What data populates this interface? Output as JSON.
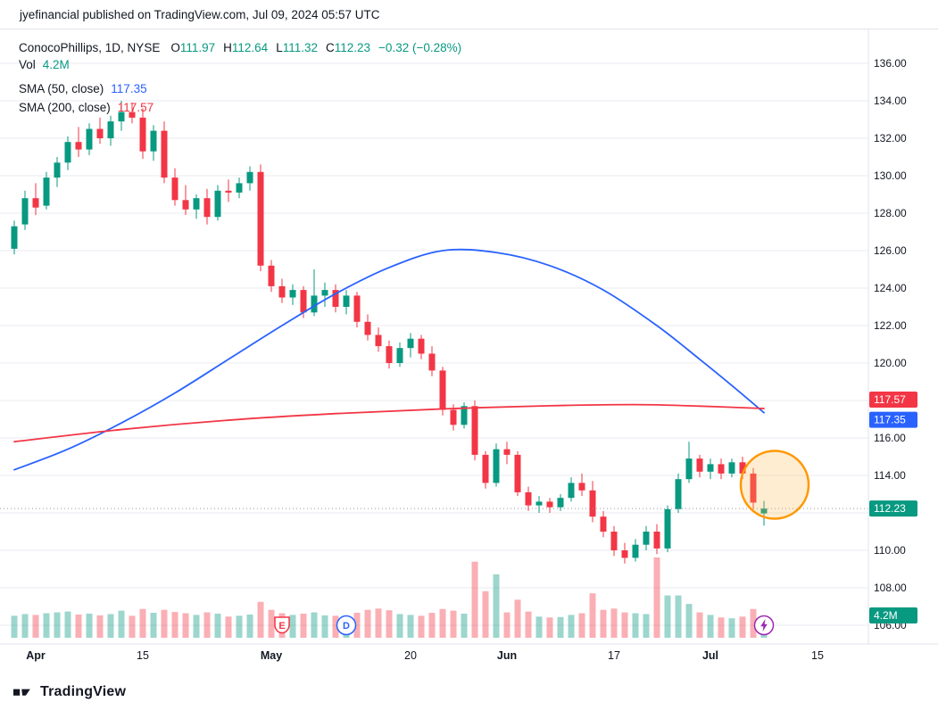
{
  "header": {
    "published_line": "jyefinancial published on TradingView.com, Jul 09, 2024 05:57 UTC"
  },
  "legend": {
    "title": "ConocoPhillips, 1D, NYSE",
    "ohlc": {
      "o_label": "O",
      "o": "111.97",
      "h_label": "H",
      "h": "112.64",
      "l_label": "L",
      "l": "111.32",
      "c_label": "C",
      "c": "112.23",
      "change": "−0.32 (−0.28%)"
    },
    "volume": {
      "label": "Vol",
      "value": "4.2M"
    },
    "sma50": {
      "label": "SMA (50, close)",
      "value": "117.35"
    },
    "sma200": {
      "label": "SMA (200, close)",
      "value": "117.57"
    }
  },
  "price_scale": {
    "badges": [
      {
        "text": "117.57",
        "bg": "#f23645"
      },
      {
        "text": "117.35",
        "bg": "#2962ff"
      },
      {
        "text": "112.23",
        "bg": "#089981"
      },
      {
        "text": "4.2M",
        "bg": "#089981",
        "anchor": "volume"
      }
    ]
  },
  "events": {
    "earnings": {
      "label": "E",
      "index": 25,
      "color": "#f23645"
    },
    "dividend": {
      "label": "D",
      "index": 31,
      "color": "#2962ff"
    },
    "latest": {
      "index": 70,
      "color": "#9c27b0",
      "icon": "lightning"
    }
  },
  "annotations": {
    "highlight_circle": {
      "index": 71,
      "price": 113.5,
      "radius": 38,
      "stroke": "#ff9800",
      "fill": "#ffb74d"
    }
  },
  "footer": {
    "brand": "TradingView"
  },
  "chart_data": {
    "type": "candlestick",
    "title": "ConocoPhillips, 1D, NYSE",
    "symbol": "ConocoPhillips",
    "interval": "1D",
    "exchange": "NYSE",
    "ylim": [
      106,
      136
    ],
    "grid_step": 2,
    "y_ticks": [
      "136.00",
      "134.00",
      "132.00",
      "130.00",
      "128.00",
      "126.00",
      "124.00",
      "122.00",
      "120.00",
      "118.00",
      "116.00",
      "114.00",
      "112.00",
      "110.00",
      "108.00",
      "106.00"
    ],
    "x_ticks": [
      {
        "label": "Apr",
        "index": 2
      },
      {
        "label": "15",
        "index": 12
      },
      {
        "label": "May",
        "index": 24
      },
      {
        "label": "20",
        "index": 37
      },
      {
        "label": "Jun",
        "index": 46
      },
      {
        "label": "17",
        "index": 56
      },
      {
        "label": "Jul",
        "index": 65
      },
      {
        "label": "15",
        "index": 75
      }
    ],
    "last_price": 112.23,
    "last_volume": "4.2M",
    "colors": {
      "up": "#089981",
      "down": "#f23645",
      "sma50": "#2962ff",
      "sma200": "#f23645",
      "grid": "#e8ebf0",
      "last_price_line": "#9598a1"
    },
    "candles": [
      [
        126.1,
        127.6,
        125.8,
        127.3,
        5.2
      ],
      [
        127.4,
        129.2,
        127.1,
        128.8,
        5.6
      ],
      [
        128.8,
        129.6,
        127.9,
        128.3,
        5.4
      ],
      [
        128.4,
        130.2,
        128.2,
        129.9,
        5.8
      ],
      [
        129.9,
        131.0,
        129.4,
        130.7,
        6.0
      ],
      [
        130.7,
        132.1,
        130.3,
        131.8,
        6.2
      ],
      [
        131.8,
        132.6,
        131.0,
        131.4,
        5.5
      ],
      [
        131.4,
        132.8,
        131.1,
        132.5,
        5.7
      ],
      [
        132.5,
        133.1,
        131.7,
        132.0,
        5.3
      ],
      [
        132.0,
        133.2,
        131.6,
        132.9,
        5.6
      ],
      [
        132.9,
        134.0,
        132.4,
        133.4,
        6.4
      ],
      [
        133.4,
        133.9,
        132.8,
        133.1,
        5.2
      ],
      [
        133.1,
        133.6,
        130.9,
        131.3,
        6.8
      ],
      [
        131.3,
        132.7,
        130.8,
        132.4,
        5.9
      ],
      [
        132.4,
        132.9,
        129.6,
        129.9,
        6.6
      ],
      [
        129.9,
        130.4,
        128.4,
        128.7,
        6.1
      ],
      [
        128.7,
        129.5,
        127.9,
        128.2,
        5.8
      ],
      [
        128.2,
        129.0,
        127.7,
        128.8,
        5.4
      ],
      [
        128.8,
        129.3,
        127.4,
        127.8,
        6.0
      ],
      [
        127.8,
        129.5,
        127.6,
        129.2,
        5.7
      ],
      [
        129.2,
        129.8,
        128.6,
        129.1,
        5.0
      ],
      [
        129.1,
        129.9,
        128.8,
        129.6,
        5.2
      ],
      [
        129.6,
        130.5,
        129.2,
        130.2,
        5.5
      ],
      [
        130.2,
        130.6,
        124.9,
        125.2,
        8.5
      ],
      [
        125.2,
        125.5,
        123.8,
        124.1,
        6.6
      ],
      [
        124.1,
        124.5,
        123.2,
        123.5,
        5.8
      ],
      [
        123.5,
        124.2,
        123.1,
        123.9,
        5.4
      ],
      [
        123.9,
        124.1,
        122.4,
        122.7,
        5.7
      ],
      [
        122.7,
        125.0,
        122.5,
        123.6,
        6.0
      ],
      [
        123.6,
        124.3,
        123.0,
        123.9,
        5.3
      ],
      [
        123.9,
        124.2,
        122.7,
        123.0,
        5.2
      ],
      [
        123.0,
        123.9,
        122.6,
        123.6,
        5.1
      ],
      [
        123.6,
        123.8,
        121.9,
        122.2,
        5.9
      ],
      [
        122.2,
        122.6,
        121.2,
        121.5,
        6.6
      ],
      [
        121.5,
        121.9,
        120.6,
        120.9,
        6.9
      ],
      [
        120.9,
        121.2,
        119.7,
        120.0,
        6.5
      ],
      [
        120.0,
        121.1,
        119.8,
        120.8,
        5.6
      ],
      [
        120.8,
        121.6,
        120.3,
        121.3,
        5.4
      ],
      [
        121.3,
        121.5,
        120.2,
        120.5,
        5.2
      ],
      [
        120.5,
        120.9,
        119.3,
        119.6,
        5.9
      ],
      [
        119.6,
        119.8,
        117.2,
        117.5,
        6.8
      ],
      [
        117.5,
        117.8,
        116.4,
        116.7,
        6.4
      ],
      [
        116.7,
        117.9,
        116.5,
        117.7,
        5.7
      ],
      [
        117.7,
        118.0,
        114.8,
        115.1,
        18.0
      ],
      [
        115.1,
        115.3,
        113.3,
        113.6,
        11.0
      ],
      [
        113.6,
        115.7,
        113.4,
        115.4,
        15.0
      ],
      [
        115.4,
        115.8,
        114.6,
        115.1,
        6.0
      ],
      [
        115.1,
        115.3,
        112.9,
        113.1,
        9.0
      ],
      [
        113.1,
        113.4,
        112.1,
        112.4,
        6.2
      ],
      [
        112.4,
        112.9,
        112.0,
        112.6,
        5.0
      ],
      [
        112.6,
        112.8,
        112.0,
        112.3,
        4.8
      ],
      [
        112.3,
        113.0,
        112.1,
        112.8,
        4.9
      ],
      [
        112.8,
        113.9,
        112.6,
        113.6,
        5.4
      ],
      [
        113.6,
        114.1,
        112.9,
        113.2,
        5.8
      ],
      [
        113.2,
        113.7,
        111.5,
        111.8,
        10.5
      ],
      [
        111.8,
        112.1,
        110.7,
        111.0,
        6.6
      ],
      [
        111.0,
        111.3,
        109.7,
        110.0,
        6.9
      ],
      [
        110.0,
        110.4,
        109.3,
        109.6,
        6.0
      ],
      [
        109.6,
        110.6,
        109.4,
        110.3,
        5.8
      ],
      [
        110.3,
        111.3,
        110.0,
        111.0,
        5.6
      ],
      [
        111.0,
        111.4,
        109.8,
        110.1,
        19.0
      ],
      [
        110.1,
        112.4,
        109.9,
        112.2,
        10.0
      ],
      [
        112.2,
        114.1,
        112.0,
        113.8,
        10.0
      ],
      [
        113.8,
        115.8,
        113.6,
        114.9,
        8.0
      ],
      [
        114.9,
        115.1,
        113.9,
        114.2,
        6.0
      ],
      [
        114.2,
        114.9,
        113.8,
        114.6,
        5.4
      ],
      [
        114.6,
        114.9,
        113.8,
        114.1,
        4.8
      ],
      [
        114.1,
        114.9,
        113.9,
        114.7,
        4.6
      ],
      [
        114.7,
        115.0,
        113.8,
        114.1,
        5.0
      ],
      [
        114.1,
        114.4,
        112.2,
        112.55,
        6.8
      ],
      [
        111.97,
        112.64,
        111.32,
        112.23,
        4.2
      ]
    ],
    "overlays": [
      {
        "name": "SMA 50",
        "color": "#2962ff",
        "points": [
          [
            0,
            114.3
          ],
          [
            5,
            115.4
          ],
          [
            10,
            116.8
          ],
          [
            15,
            118.4
          ],
          [
            20,
            120.2
          ],
          [
            25,
            122.0
          ],
          [
            30,
            123.7
          ],
          [
            35,
            125.1
          ],
          [
            40,
            126.0
          ],
          [
            45,
            125.9
          ],
          [
            50,
            125.2
          ],
          [
            55,
            123.9
          ],
          [
            60,
            122.0
          ],
          [
            64,
            120.2
          ],
          [
            67,
            118.8
          ],
          [
            70,
            117.35
          ]
        ]
      },
      {
        "name": "SMA 200",
        "color": "#f23645",
        "points": [
          [
            0,
            115.8
          ],
          [
            10,
            116.45
          ],
          [
            20,
            116.95
          ],
          [
            30,
            117.3
          ],
          [
            40,
            117.55
          ],
          [
            50,
            117.72
          ],
          [
            58,
            117.78
          ],
          [
            64,
            117.7
          ],
          [
            70,
            117.57
          ]
        ]
      }
    ]
  }
}
